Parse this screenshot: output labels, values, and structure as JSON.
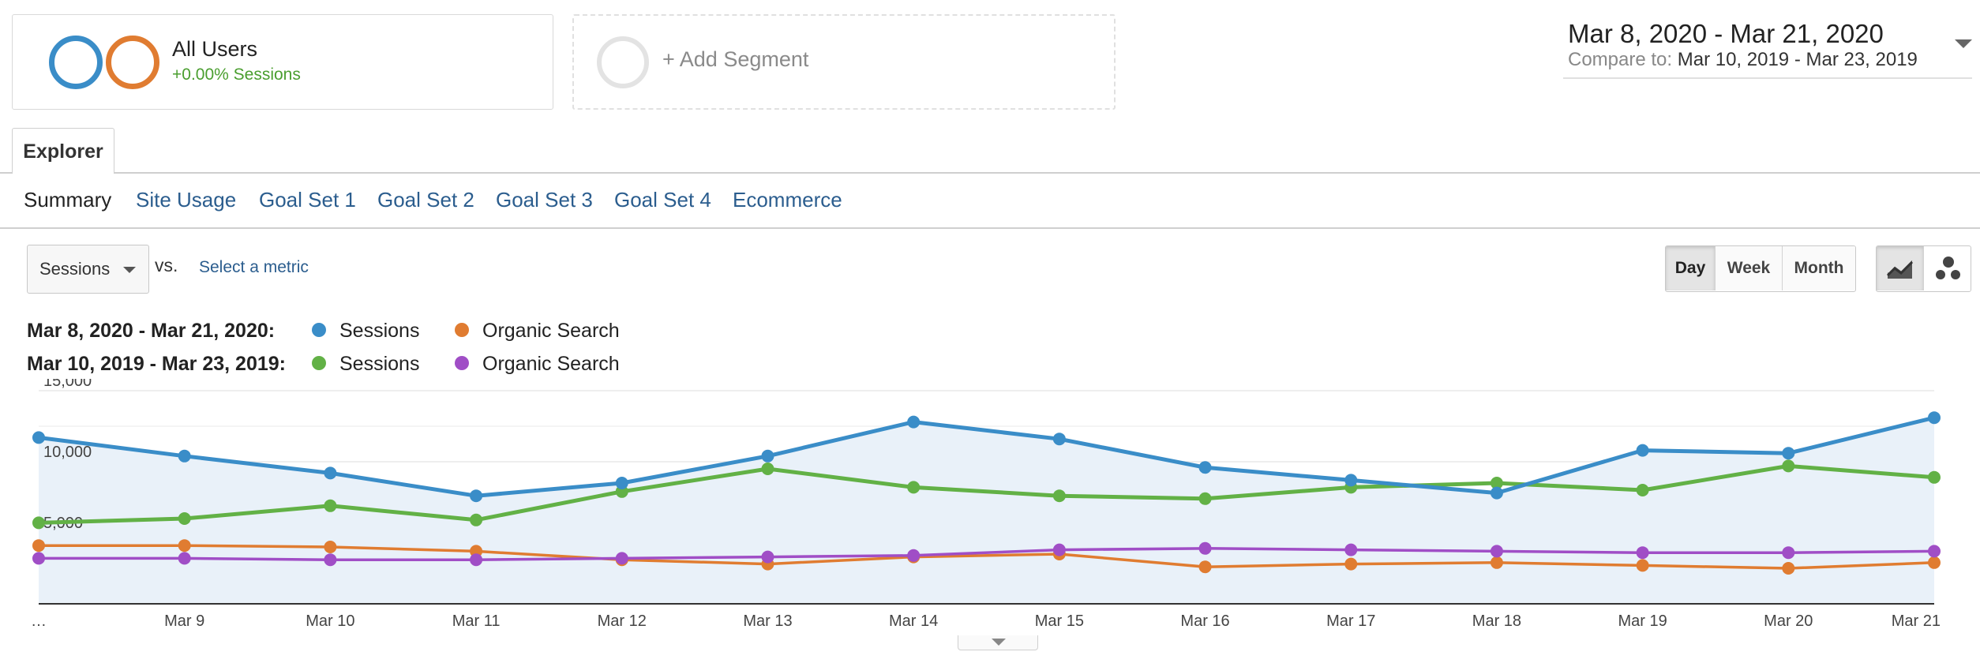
{
  "segments": {
    "all_users": {
      "title": "All Users",
      "subtitle": "+0.00% Sessions",
      "colors": [
        "#3a8dc8",
        "#e07c31"
      ]
    },
    "add_segment": {
      "label": "+ Add Segment"
    }
  },
  "date_range": {
    "main": "Mar 8, 2020 - Mar 21, 2020",
    "compare_label": "Compare to:",
    "compare_value": "Mar 10, 2019 - Mar 23, 2019"
  },
  "tabs": {
    "explorer": "Explorer"
  },
  "subnav": [
    "Summary",
    "Site Usage",
    "Goal Set 1",
    "Goal Set 2",
    "Goal Set 3",
    "Goal Set 4",
    "Ecommerce"
  ],
  "controls": {
    "metric": "Sessions",
    "vs": "vs.",
    "select_metric": "Select a metric",
    "granularity": [
      "Day",
      "Week",
      "Month"
    ],
    "granularity_selected": "Day",
    "viz_icons": [
      "line-chart-icon",
      "motion-chart-icon"
    ]
  },
  "legend": {
    "rows": [
      {
        "range": "Mar 8, 2020 - Mar 21, 2020:",
        "items": [
          {
            "label": "Sessions",
            "color": "#3a8dc8"
          },
          {
            "label": "Organic Search",
            "color": "#e07c31"
          }
        ]
      },
      {
        "range": "Mar 10, 2019 - Mar 23, 2019:",
        "items": [
          {
            "label": "Sessions",
            "color": "#62b146"
          },
          {
            "label": "Organic Search",
            "color": "#a04ec6"
          }
        ]
      }
    ]
  },
  "chart_data": {
    "type": "line",
    "x": [
      "…",
      "Mar 9",
      "Mar 10",
      "Mar 11",
      "Mar 12",
      "Mar 13",
      "Mar 14",
      "Mar 15",
      "Mar 16",
      "Mar 17",
      "Mar 18",
      "Mar 19",
      "Mar 20",
      "Mar 21"
    ],
    "y_ticks": [
      "15,000",
      "10,000",
      "5,000"
    ],
    "y_tick_values": [
      15000,
      10000,
      5000
    ],
    "ylim": [
      0,
      15000
    ],
    "grid": true,
    "area_fill_series": 0,
    "series": [
      {
        "name": "Sessions",
        "color": "#3a8dc8",
        "values": [
          11700,
          10400,
          9200,
          7600,
          8500,
          10400,
          12800,
          11600,
          9600,
          8700,
          7800,
          10800,
          10600,
          13100
        ]
      },
      {
        "name": "Organic Search",
        "color": "#e07c31",
        "values": [
          4100,
          4100,
          4000,
          3700,
          3100,
          2800,
          3300,
          3500,
          2600,
          2800,
          2900,
          2700,
          2500,
          2900
        ]
      },
      {
        "name": "Sessions",
        "color": "#62b146",
        "values": [
          5700,
          6000,
          6900,
          5900,
          7900,
          9500,
          8200,
          7600,
          7400,
          8200,
          8500,
          8000,
          9700,
          8900
        ]
      },
      {
        "name": "Organic Search",
        "color": "#a04ec6",
        "values": [
          3200,
          3200,
          3100,
          3100,
          3200,
          3300,
          3400,
          3800,
          3900,
          3800,
          3700,
          3600,
          3600,
          3700
        ]
      }
    ]
  }
}
